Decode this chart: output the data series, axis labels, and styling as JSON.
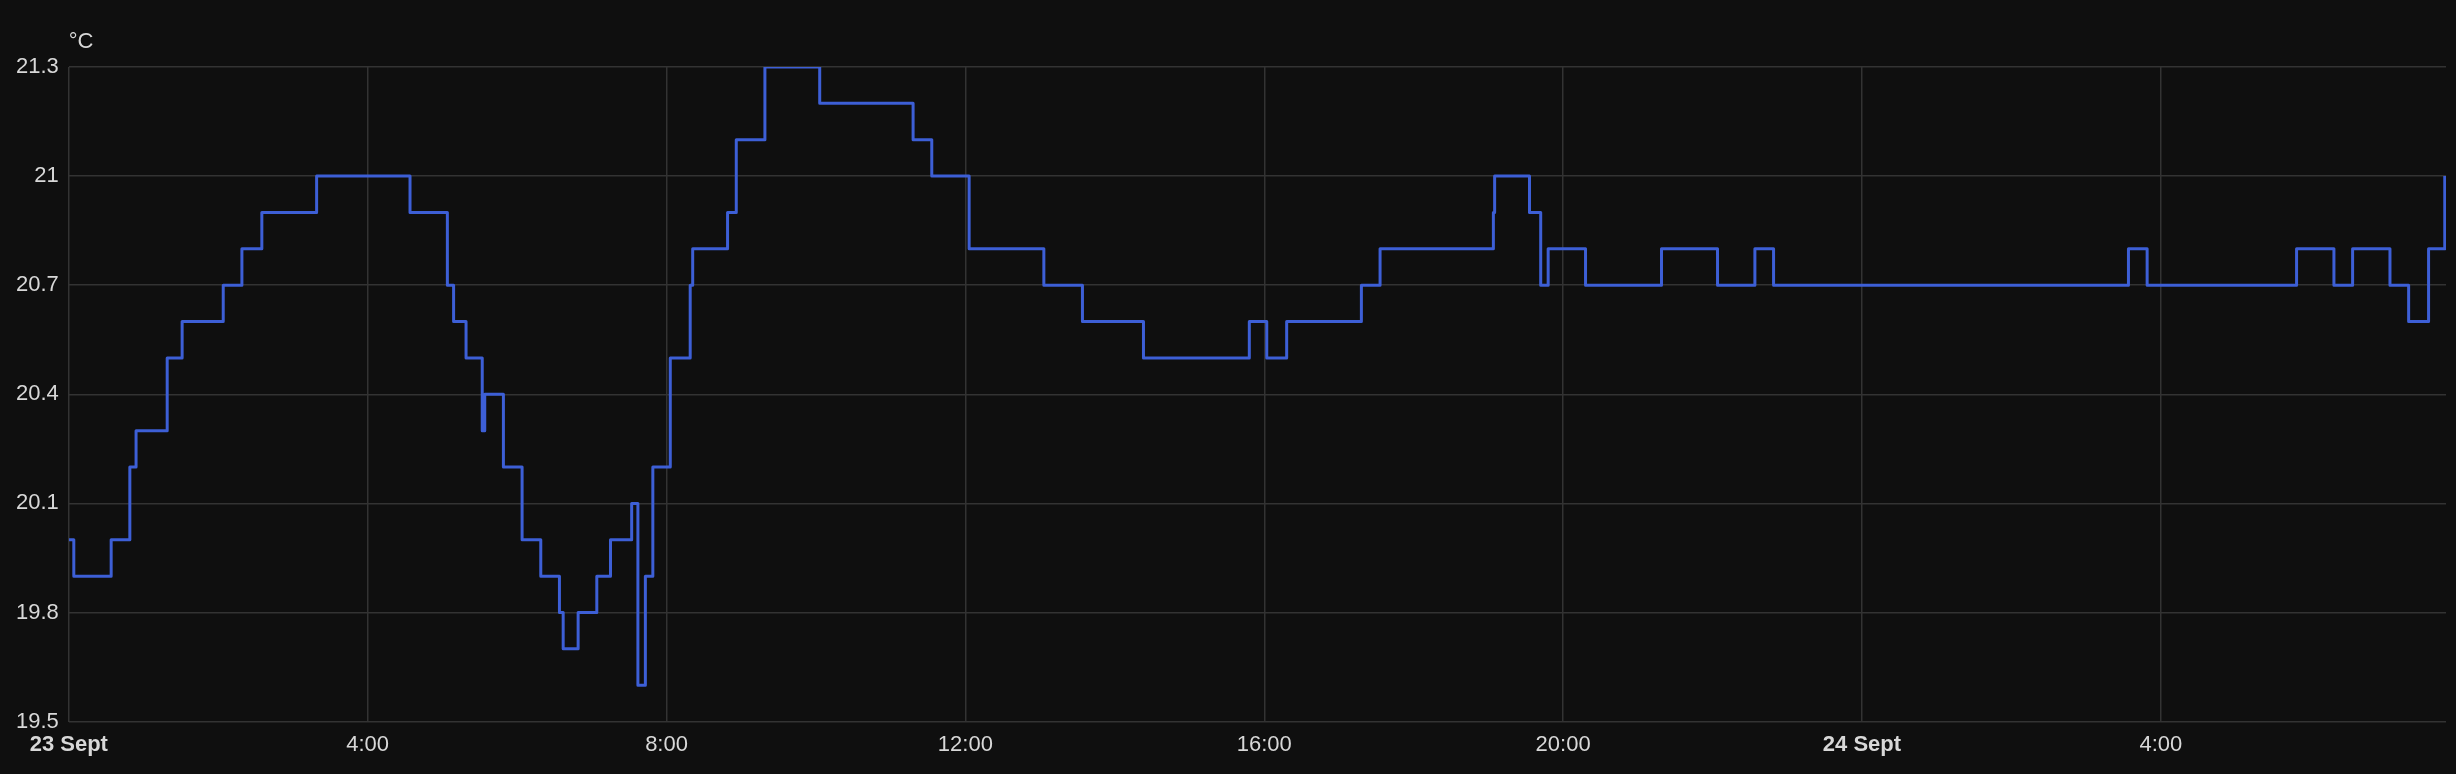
{
  "chart_data": {
    "type": "step",
    "ylabel": "°C",
    "x": [
      "--09-23T00:00",
      "--09-23T00:04",
      "--09-23T00:34",
      "--09-23T00:49",
      "--09-23T00:54",
      "--09-23T01:19",
      "--09-23T01:31",
      "--09-23T02:04",
      "--09-23T02:19",
      "--09-23T02:35",
      "--09-23T03:19",
      "--09-23T04:34",
      "--09-23T05:04",
      "--09-23T05:09",
      "--09-23T05:19",
      "--09-23T05:32",
      "--09-23T05:34",
      "--09-23T05:49",
      "--09-23T06:04",
      "--09-23T06:19",
      "--09-23T06:34",
      "--09-23T06:37",
      "--09-23T06:49",
      "--09-23T07:04",
      "--09-23T07:15",
      "--09-23T07:32",
      "--09-23T07:37",
      "--09-23T07:43",
      "--09-23T07:49",
      "--09-23T08:03",
      "--09-23T08:19",
      "--09-23T08:21",
      "--09-23T08:49",
      "--09-23T08:56",
      "--09-23T09:19",
      "--09-23T10:03",
      "--09-23T11:18",
      "--09-23T11:33",
      "--09-23T12:03",
      "--09-23T13:03",
      "--09-23T13:34",
      "--09-23T14:23",
      "--09-23T15:48",
      "--09-23T16:02",
      "--09-23T16:18",
      "--09-23T17:18",
      "--09-23T17:33",
      "--09-23T19:04",
      "--09-23T19:05",
      "--09-23T19:33",
      "--09-23T19:42",
      "--09-23T19:48",
      "--09-23T20:18",
      "--09-23T21:19",
      "--09-23T22:04",
      "--09-23T22:34",
      "--09-23T22:49",
      "--09-24T03:34",
      "--09-24T03:49",
      "--09-24T05:49",
      "--09-24T06:19",
      "--09-24T06:34",
      "--09-24T07:04",
      "--09-24T07:19",
      "--09-24T07:35",
      "--09-24T07:48"
    ],
    "series": [
      {
        "color": "#3d5fd6",
        "values": [
          20.0,
          19.9,
          20.0,
          20.2,
          20.3,
          20.5,
          20.6,
          20.7,
          20.8,
          20.9,
          21.0,
          20.9,
          20.7,
          20.6,
          20.5,
          20.3,
          20.4,
          20.2,
          20.0,
          19.9,
          19.8,
          19.7,
          19.8,
          19.9,
          20.0,
          20.1,
          19.6,
          19.9,
          20.2,
          20.5,
          20.7,
          20.8,
          20.9,
          21.1,
          21.3,
          21.2,
          21.1,
          21.0,
          20.8,
          20.7,
          20.6,
          20.5,
          20.6,
          20.5,
          20.6,
          20.7,
          20.8,
          20.9,
          21.0,
          20.9,
          20.7,
          20.8,
          20.7,
          20.8,
          20.7,
          20.8,
          20.7,
          20.8,
          20.7,
          20.8,
          20.7,
          20.8,
          20.7,
          20.6,
          20.8,
          21.0
        ]
      }
    ],
    "xlim": [
      "--09-23T00:00",
      "--09-24T07:49"
    ],
    "xticks": [
      {
        "value": "--09-23T00:00",
        "label": "23 Sept"
      },
      {
        "value": "--09-23T04:00",
        "label": "4:00"
      },
      {
        "value": "--09-23T08:00",
        "label": "8:00"
      },
      {
        "value": "--09-23T12:00",
        "label": "12:00"
      },
      {
        "value": "--09-23T16:00",
        "label": "16:00"
      },
      {
        "value": "--09-23T20:00",
        "label": "20:00"
      },
      {
        "value": "--09-24T00:00",
        "label": "24 Sept"
      },
      {
        "value": "--09-24T04:00",
        "label": "4:00"
      }
    ],
    "ylim": [
      19.5,
      21.3
    ],
    "yticks": [
      19.5,
      19.8,
      20.1,
      20.4,
      20.7,
      21,
      21.3
    ],
    "grid": true,
    "legend": false,
    "marker": "none",
    "line_style": "solid"
  }
}
